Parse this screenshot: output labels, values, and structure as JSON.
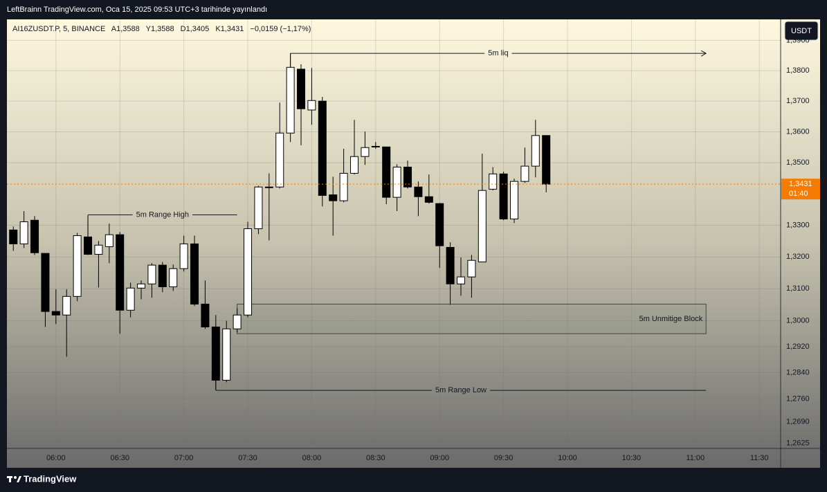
{
  "header": {
    "text": "LeftBrainn TradingView.com, Oca 15, 2025 09:53 UTC+3 tarihinde yayınlandı"
  },
  "legend": {
    "symbol": "AI16ZUSDT.P, 5, BINANCE",
    "fields": [
      {
        "label": "A",
        "value": "1,3588"
      },
      {
        "label": "Y",
        "value": "1,3588"
      },
      {
        "label": "D",
        "value": "1,3405"
      },
      {
        "label": "K",
        "value": "1,3431"
      }
    ],
    "change": "−0,0159 (−1,17%)"
  },
  "currency": "USDT",
  "footer": {
    "brand": "TradingView"
  },
  "chart_data": {
    "type": "candlestick",
    "log": true,
    "grid": true,
    "up_color": "#ffffff",
    "down_color": "#000000",
    "wick_color": "#000000",
    "x": [
      "05:40",
      "05:45",
      "05:50",
      "05:55",
      "06:00",
      "06:05",
      "06:10",
      "06:15",
      "06:20",
      "06:25",
      "06:30",
      "06:35",
      "06:40",
      "06:45",
      "06:50",
      "06:55",
      "07:00",
      "07:05",
      "07:10",
      "07:15",
      "07:20",
      "07:25",
      "07:30",
      "07:35",
      "07:40",
      "07:45",
      "07:50",
      "07:55",
      "08:00",
      "08:05",
      "08:10",
      "08:15",
      "08:20",
      "08:25",
      "08:30",
      "08:35",
      "08:40",
      "08:45",
      "08:50",
      "08:55",
      "09:00",
      "09:05",
      "09:10",
      "09:15",
      "09:20",
      "09:25",
      "09:30",
      "09:35",
      "09:40",
      "09:45",
      "09:50"
    ],
    "open": [
      1.3285,
      1.3241,
      1.3316,
      1.3211,
      1.3029,
      1.3018,
      1.3076,
      1.3263,
      1.3208,
      1.3232,
      1.327,
      1.3033,
      1.3102,
      1.3115,
      1.3174,
      1.3106,
      1.3163,
      1.3241,
      1.3052,
      1.2981,
      1.2817,
      1.2975,
      1.3018,
      1.3289,
      1.3422,
      1.3422,
      1.3596,
      1.3805,
      1.3671,
      1.37,
      1.3397,
      1.3378,
      1.3466,
      1.352,
      1.3551,
      1.3551,
      1.3389,
      1.3486,
      1.3422,
      1.3391,
      1.3369,
      1.323,
      1.3115,
      1.3137,
      1.3184,
      1.3415,
      1.3464,
      1.332,
      1.344,
      1.3489,
      1.3588
    ],
    "high": [
      1.3296,
      1.3345,
      1.3329,
      1.3211,
      1.3098,
      1.3098,
      1.3276,
      1.3329,
      1.325,
      1.3305,
      1.3278,
      1.3119,
      1.3126,
      1.318,
      1.3184,
      1.3176,
      1.3267,
      1.3267,
      1.3126,
      1.3018,
      1.3,
      1.3039,
      1.3311,
      1.3426,
      1.3466,
      1.3695,
      1.3857,
      1.3821,
      1.3809,
      1.3714,
      1.3455,
      1.3545,
      1.3639,
      1.3601,
      1.3567,
      1.3551,
      1.3495,
      1.3507,
      1.344,
      1.3462,
      1.3371,
      1.3246,
      1.3198,
      1.3206,
      1.3529,
      1.3486,
      1.3471,
      1.3449,
      1.3549,
      1.3639,
      1.3588
    ],
    "low": [
      1.3219,
      1.3228,
      1.3206,
      1.2981,
      1.299,
      1.2889,
      1.3061,
      1.3206,
      1.3104,
      1.318,
      1.296,
      1.3011,
      1.3067,
      1.3072,
      1.3089,
      1.3093,
      1.3154,
      1.3046,
      1.2975,
      1.2788,
      1.2811,
      1.2964,
      1.3011,
      1.3272,
      1.3252,
      1.3417,
      1.3567,
      1.3556,
      1.3623,
      1.336,
      1.3267,
      1.3373,
      1.3462,
      1.3493,
      1.3545,
      1.3367,
      1.3345,
      1.3417,
      1.3329,
      1.3369,
      1.3165,
      1.305,
      1.3078,
      1.3072,
      1.3184,
      1.3411,
      1.3316,
      1.3307,
      1.3435,
      1.3453,
      1.3405
    ],
    "close": [
      1.3241,
      1.3311,
      1.3213,
      1.3029,
      1.3018,
      1.3076,
      1.3267,
      1.3208,
      1.3237,
      1.327,
      1.3033,
      1.3102,
      1.3115,
      1.3174,
      1.3106,
      1.3163,
      1.3241,
      1.3052,
      1.2981,
      1.2817,
      1.2975,
      1.3018,
      1.3289,
      1.3422,
      1.342,
      1.3596,
      1.3811,
      1.3675,
      1.3702,
      1.3395,
      1.3378,
      1.3466,
      1.352,
      1.3549,
      1.3553,
      1.3389,
      1.3486,
      1.3422,
      1.3391,
      1.3373,
      1.3235,
      1.3115,
      1.3137,
      1.3189,
      1.3411,
      1.3464,
      1.332,
      1.344,
      1.3489,
      1.3588,
      1.3431
    ],
    "xlim": [
      "05:37",
      "11:40"
    ],
    "xticks": [
      "06:00",
      "06:30",
      "07:00",
      "07:30",
      "08:00",
      "08:30",
      "09:00",
      "09:30",
      "10:00",
      "10:30",
      "11:00",
      "11:30"
    ],
    "ylim": [
      1.261,
      1.397
    ],
    "yticks": [
      {
        "value": 1.39,
        "label": "1,3900"
      },
      {
        "value": 1.38,
        "label": "1,3800"
      },
      {
        "value": 1.37,
        "label": "1,3700"
      },
      {
        "value": 1.36,
        "label": "1,3600"
      },
      {
        "value": 1.35,
        "label": "1,3500"
      },
      {
        "value": 1.33,
        "label": "1,3300"
      },
      {
        "value": 1.32,
        "label": "1,3200"
      },
      {
        "value": 1.31,
        "label": "1,3100"
      },
      {
        "value": 1.3,
        "label": "1,3000"
      },
      {
        "value": 1.292,
        "label": "1,2920"
      },
      {
        "value": 1.284,
        "label": "1,2840"
      },
      {
        "value": 1.276,
        "label": "1,2760"
      },
      {
        "value": 1.269,
        "label": "1,2690"
      },
      {
        "value": 1.2625,
        "label": "1,2625"
      }
    ],
    "last_price": {
      "value": 1.3431,
      "label": "1,3431",
      "countdown": "01:40",
      "color": "#f57c00"
    },
    "annotations": [
      {
        "kind": "line",
        "text": "5m liq",
        "start": "07:50",
        "end": "11:05",
        "price": 1.3857,
        "anchor": 1.3811,
        "arrow": true
      },
      {
        "kind": "line",
        "text": "5m Range High",
        "start": "06:15",
        "end": "07:25",
        "price": 1.3333,
        "anchor": 1.3267,
        "arrow": false
      },
      {
        "kind": "line",
        "text": "5m Range Low",
        "start": "07:15",
        "end": "11:05",
        "price": 1.2786,
        "anchor": 1.2817,
        "arrow": false
      },
      {
        "kind": "box",
        "text": "5m Unmitige Block",
        "start": "07:25",
        "end": "11:05",
        "top": 1.3052,
        "bottom": 1.296
      }
    ]
  }
}
